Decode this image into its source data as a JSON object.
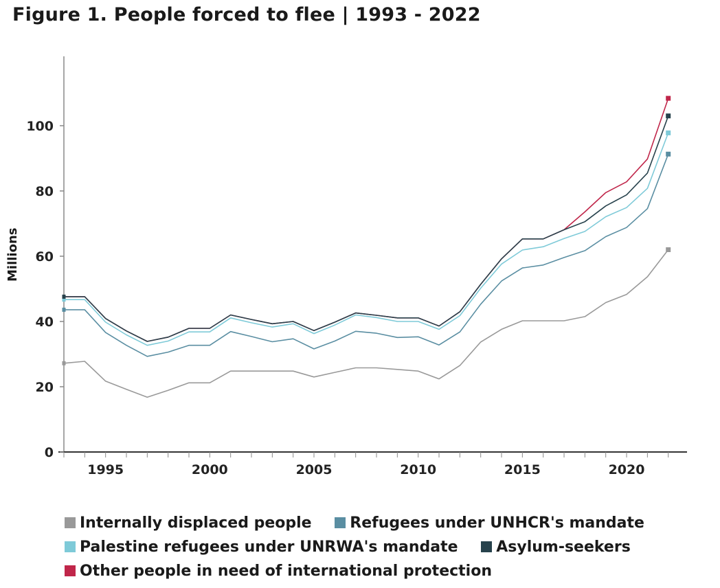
{
  "title": "Figure 1. People forced to flee | 1993 - 2022",
  "chart_data": {
    "type": "line",
    "title": "Figure 1. People forced to flee | 1993 - 2022",
    "xlabel": "",
    "ylabel": "Millions",
    "xlim": [
      1993,
      2022
    ],
    "ylim": [
      0,
      120
    ],
    "x_ticks": [
      1995,
      2000,
      2005,
      2010,
      2015,
      2020
    ],
    "y_ticks": [
      0,
      20,
      40,
      60,
      80,
      100
    ],
    "grid": false,
    "legend_position": "bottom",
    "stacked": true,
    "x": [
      1993,
      1994,
      1995,
      1996,
      1997,
      1998,
      1999,
      2000,
      2001,
      2002,
      2003,
      2004,
      2005,
      2006,
      2007,
      2008,
      2009,
      2010,
      2011,
      2012,
      2013,
      2014,
      2015,
      2016,
      2017,
      2018,
      2019,
      2020,
      2021,
      2022
    ],
    "series": [
      {
        "name": "Internally displaced people",
        "color": "#999999",
        "values": [
          27.2,
          27.8,
          21.7,
          19.2,
          16.8,
          18.9,
          21.2,
          21.2,
          24.8,
          24.8,
          24.8,
          24.8,
          23.0,
          24.4,
          25.8,
          25.8,
          25.3,
          24.8,
          22.4,
          26.5,
          33.7,
          37.6,
          40.2,
          40.2,
          40.2,
          41.5,
          45.8,
          48.3,
          53.7,
          62.0
        ]
      },
      {
        "name": "Refugees under UNHCR's mandate",
        "color": "#5a8ea2",
        "values": [
          43.6,
          43.6,
          36.6,
          32.7,
          29.3,
          30.6,
          32.7,
          32.7,
          36.9,
          35.4,
          33.8,
          34.7,
          31.6,
          34.0,
          37.0,
          36.4,
          35.1,
          35.3,
          32.8,
          36.8,
          45.3,
          52.4,
          56.4,
          57.3,
          59.6,
          61.7,
          66.0,
          68.8,
          74.6,
          91.3
        ]
      },
      {
        "name": "Palestine refugees under UNRWA's mandate",
        "color": "#7ecad8",
        "values": [
          46.7,
          46.7,
          39.8,
          35.9,
          32.7,
          34.0,
          36.8,
          36.8,
          41.1,
          39.6,
          38.3,
          39.3,
          36.3,
          38.9,
          42.0,
          41.2,
          40.0,
          40.0,
          37.6,
          41.8,
          50.2,
          57.6,
          61.9,
          62.9,
          65.4,
          67.6,
          72.1,
          74.9,
          80.8,
          97.8
        ]
      },
      {
        "name": "Asylum-seekers",
        "color": "#27424c",
        "values": [
          47.6,
          47.6,
          40.9,
          37.1,
          33.9,
          35.2,
          37.9,
          37.9,
          42.0,
          40.6,
          39.3,
          40.0,
          37.2,
          39.8,
          42.6,
          41.9,
          41.1,
          41.1,
          38.6,
          43.0,
          51.4,
          59.2,
          65.3,
          65.3,
          68.1,
          70.6,
          75.4,
          78.8,
          85.5,
          103.0
        ]
      },
      {
        "name": "Other people in need of international protection",
        "color": "#c0264a",
        "values": [
          47.6,
          47.6,
          40.9,
          37.1,
          33.9,
          35.2,
          37.9,
          37.9,
          42.0,
          40.6,
          39.3,
          40.0,
          37.2,
          39.8,
          42.6,
          41.9,
          41.1,
          41.1,
          38.6,
          43.0,
          51.4,
          59.2,
          65.3,
          65.3,
          68.1,
          73.6,
          79.5,
          82.8,
          89.8,
          108.4
        ]
      }
    ]
  }
}
